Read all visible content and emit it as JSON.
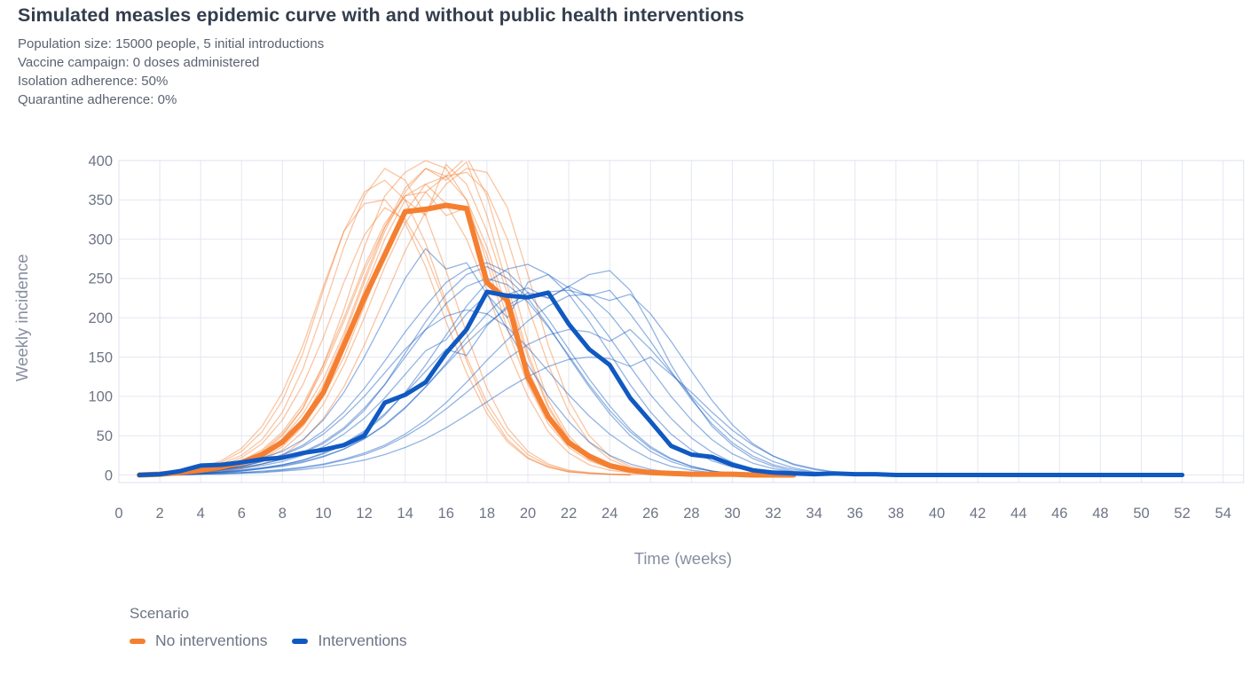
{
  "header": {
    "title": "Simulated measles epidemic curve with and without public health interventions",
    "subtitle_lines": [
      "Population size: 15000 people, 5 initial introductions",
      "Vaccine campaign: 0 doses administered",
      "Isolation adherence: 50%",
      "Quarantine adherence: 0%"
    ]
  },
  "colors": {
    "title": "#333d4c",
    "subtitle": "#5b6270",
    "grid": "#e4e7f0",
    "axis_border": "#dde1ec",
    "tick_label": "#6e7585",
    "axis_title": "#878ea1",
    "orange": "#F57F31",
    "blue": "#1059C2"
  },
  "chart_data": {
    "type": "line",
    "title": "Simulated measles epidemic curve with and without public health interventions",
    "xlabel": "Time (weeks)",
    "ylabel": "Weekly incidence",
    "xlim": [
      0,
      55
    ],
    "ylim": [
      0,
      400
    ],
    "x_ticks": [
      0,
      2,
      4,
      6,
      8,
      10,
      12,
      14,
      16,
      18,
      20,
      22,
      24,
      26,
      28,
      30,
      32,
      34,
      36,
      38,
      40,
      42,
      44,
      46,
      48,
      50,
      52,
      54
    ],
    "y_ticks": [
      0,
      50,
      100,
      150,
      200,
      250,
      300,
      350,
      400
    ],
    "grid": true,
    "legend_position": "bottom-left",
    "legend": {
      "title": "Scenario",
      "entries": [
        {
          "label": "No interventions",
          "color": "#F57F31"
        },
        {
          "label": "Interventions",
          "color": "#1059C2"
        }
      ]
    },
    "series": [
      {
        "name": "No interventions (mean)",
        "color": "#F57F31",
        "width": 6,
        "start_week": 1,
        "values": [
          0,
          1,
          3,
          6,
          10,
          16,
          26,
          42,
          68,
          105,
          165,
          225,
          280,
          335,
          338,
          343,
          339,
          245,
          222,
          125,
          74,
          41,
          24,
          12,
          6,
          3,
          2,
          1,
          1,
          1,
          0,
          0,
          0
        ]
      },
      {
        "name": "Interventions (mean)",
        "color": "#1059C2",
        "width": 5,
        "start_week": 1,
        "values": [
          0,
          1,
          5,
          12,
          13,
          16,
          20,
          22,
          28,
          32,
          38,
          50,
          92,
          102,
          118,
          155,
          185,
          233,
          228,
          226,
          232,
          192,
          160,
          140,
          98,
          68,
          37,
          26,
          23,
          13,
          6,
          3,
          2,
          1,
          2,
          1,
          1,
          0,
          0,
          0,
          0,
          0,
          0,
          0,
          0,
          0,
          0,
          0,
          0,
          0,
          0,
          0
        ]
      }
    ],
    "simulations": {
      "opacity": 0.45,
      "width": 1.3,
      "no_interventions": [
        [
          0,
          1,
          2,
          5,
          9,
          15,
          28,
          50,
          85,
          140,
          210,
          290,
          355,
          385,
          400,
          390,
          350,
          270,
          185,
          115,
          65,
          35,
          18,
          9,
          4,
          2,
          1,
          0
        ],
        [
          0,
          1,
          3,
          7,
          14,
          25,
          45,
          80,
          135,
          210,
          290,
          355,
          390,
          375,
          330,
          260,
          180,
          110,
          60,
          30,
          14,
          6,
          3,
          1,
          0
        ],
        [
          0,
          0,
          1,
          3,
          6,
          10,
          18,
          32,
          55,
          90,
          140,
          200,
          265,
          320,
          360,
          380,
          385,
          360,
          300,
          215,
          140,
          80,
          42,
          20,
          9,
          4,
          2,
          1,
          0
        ],
        [
          0,
          1,
          2,
          4,
          8,
          14,
          24,
          42,
          70,
          115,
          175,
          245,
          310,
          360,
          390,
          380,
          405,
          355,
          265,
          170,
          95,
          50,
          24,
          11,
          5,
          2,
          1,
          0
        ],
        [
          0,
          1,
          3,
          8,
          16,
          30,
          55,
          95,
          155,
          235,
          310,
          360,
          375,
          350,
          295,
          220,
          145,
          85,
          45,
          22,
          10,
          4,
          2,
          1,
          0
        ],
        [
          0,
          1,
          2,
          4,
          7,
          12,
          22,
          40,
          68,
          110,
          165,
          235,
          300,
          350,
          330,
          395,
          370,
          310,
          230,
          150,
          85,
          45,
          22,
          10,
          4,
          2,
          1,
          0
        ],
        [
          0,
          1,
          2,
          5,
          10,
          18,
          32,
          55,
          90,
          140,
          200,
          265,
          320,
          355,
          360,
          330,
          340,
          280,
          200,
          130,
          75,
          40,
          20,
          9,
          4,
          2,
          1,
          0
        ],
        [
          0,
          0,
          1,
          3,
          6,
          11,
          20,
          36,
          62,
          100,
          150,
          215,
          280,
          335,
          370,
          380,
          350,
          290,
          210,
          135,
          78,
          42,
          20,
          9,
          4,
          2,
          1,
          1,
          0
        ],
        [
          0,
          1,
          2,
          6,
          12,
          22,
          40,
          70,
          115,
          175,
          245,
          305,
          340,
          325,
          280,
          215,
          150,
          92,
          52,
          26,
          12,
          5,
          2,
          1,
          0
        ],
        [
          0,
          0,
          1,
          2,
          4,
          8,
          14,
          25,
          44,
          72,
          112,
          165,
          225,
          285,
          335,
          370,
          390,
          385,
          340,
          255,
          165,
          95,
          50,
          24,
          11,
          5,
          2,
          1,
          0
        ],
        [
          0,
          1,
          2,
          5,
          9,
          17,
          30,
          52,
          85,
          135,
          195,
          260,
          315,
          355,
          370,
          345,
          300,
          235,
          160,
          100,
          55,
          28,
          13,
          6,
          3,
          1,
          0
        ],
        [
          0,
          1,
          2,
          4,
          8,
          15,
          26,
          46,
          78,
          122,
          180,
          250,
          315,
          365,
          390,
          375,
          398,
          330,
          240,
          155,
          88,
          46,
          22,
          10,
          4,
          2,
          1,
          0
        ],
        [
          0,
          1,
          3,
          9,
          18,
          34,
          62,
          105,
          165,
          240,
          310,
          345,
          350,
          320,
          265,
          195,
          130,
          78,
          42,
          21,
          10,
          4,
          2,
          1,
          1,
          1,
          0,
          0,
          0,
          0,
          0,
          0,
          0,
          0,
          0
        ]
      ],
      "interventions": [
        [
          0,
          1,
          3,
          6,
          10,
          15,
          22,
          30,
          45,
          70,
          105,
          150,
          200,
          250,
          288,
          262,
          270,
          230,
          185,
          140,
          100,
          68,
          42,
          25,
          14,
          7,
          3,
          2,
          1,
          0
        ],
        [
          0,
          1,
          2,
          4,
          7,
          10,
          14,
          20,
          28,
          40,
          58,
          82,
          115,
          155,
          195,
          230,
          255,
          265,
          250,
          225,
          190,
          150,
          112,
          78,
          50,
          30,
          17,
          9,
          5,
          2,
          1,
          0
        ],
        [
          0,
          0,
          1,
          2,
          4,
          6,
          9,
          13,
          19,
          27,
          38,
          54,
          76,
          105,
          140,
          178,
          215,
          245,
          262,
          268,
          255,
          230,
          195,
          155,
          115,
          80,
          52,
          32,
          18,
          10,
          5,
          2,
          1,
          0
        ],
        [
          0,
          0,
          1,
          2,
          3,
          5,
          8,
          12,
          17,
          24,
          33,
          46,
          63,
          85,
          112,
          142,
          175,
          205,
          230,
          238,
          225,
          240,
          255,
          260,
          235,
          190,
          140,
          98,
          62,
          38,
          21,
          11,
          5,
          2,
          1,
          0
        ],
        [
          0,
          0,
          0,
          1,
          2,
          3,
          5,
          7,
          10,
          14,
          20,
          28,
          38,
          52,
          70,
          92,
          118,
          146,
          172,
          196,
          215,
          228,
          230,
          222,
          230,
          205,
          170,
          132,
          95,
          64,
          40,
          24,
          13,
          7,
          3,
          1,
          0
        ],
        [
          0,
          1,
          2,
          4,
          6,
          9,
          14,
          20,
          29,
          42,
          60,
          85,
          115,
          150,
          185,
          218,
          240,
          250,
          242,
          220,
          188,
          152,
          115,
          82,
          55,
          34,
          20,
          11,
          5,
          2,
          1,
          0
        ],
        [
          0,
          0,
          1,
          2,
          4,
          6,
          9,
          13,
          19,
          28,
          40,
          56,
          78,
          104,
          132,
          160,
          152,
          190,
          215,
          232,
          225,
          240,
          228,
          205,
          172,
          135,
          100,
          70,
          45,
          27,
          15,
          8,
          4,
          2,
          1,
          0
        ],
        [
          0,
          1,
          2,
          4,
          7,
          11,
          17,
          25,
          36,
          52,
          74,
          100,
          130,
          160,
          185,
          202,
          210,
          205,
          188,
          162,
          132,
          102,
          75,
          52,
          34,
          20,
          11,
          6,
          3,
          1,
          0
        ],
        [
          0,
          1,
          1,
          3,
          5,
          8,
          12,
          17,
          25,
          36,
          52,
          72,
          98,
          128,
          158,
          172,
          205,
          230,
          200,
          245,
          255,
          238,
          210,
          175,
          138,
          102,
          72,
          47,
          29,
          16,
          8,
          4,
          2,
          1,
          0
        ],
        [
          0,
          0,
          1,
          2,
          3,
          5,
          8,
          11,
          16,
          23,
          33,
          46,
          64,
          86,
          112,
          140,
          168,
          192,
          212,
          226,
          233,
          235,
          228,
          235,
          205,
          170,
          132,
          96,
          65,
          41,
          24,
          13,
          7,
          3,
          1,
          0
        ],
        [
          0,
          0,
          0,
          1,
          2,
          3,
          4,
          6,
          9,
          13,
          19,
          26,
          36,
          49,
          65,
          84,
          105,
          127,
          148,
          166,
          178,
          185,
          182,
          170,
          185,
          160,
          130,
          100,
          72,
          48,
          30,
          17,
          9,
          4,
          2,
          1,
          0
        ],
        [
          0,
          1,
          2,
          4,
          7,
          11,
          17,
          26,
          38,
          56,
          80,
          110,
          145,
          182,
          215,
          245,
          262,
          270,
          258,
          232,
          198,
          160,
          122,
          88,
          58,
          36,
          21,
          11,
          5,
          2,
          1,
          0
        ],
        [
          0,
          0,
          0,
          1,
          1,
          2,
          3,
          5,
          7,
          10,
          14,
          19,
          26,
          35,
          46,
          60,
          76,
          93,
          110,
          125,
          138,
          147,
          150,
          148,
          138,
          150,
          128,
          105,
          80,
          57,
          38,
          24,
          14,
          8,
          4,
          2,
          1,
          0
        ]
      ]
    }
  }
}
